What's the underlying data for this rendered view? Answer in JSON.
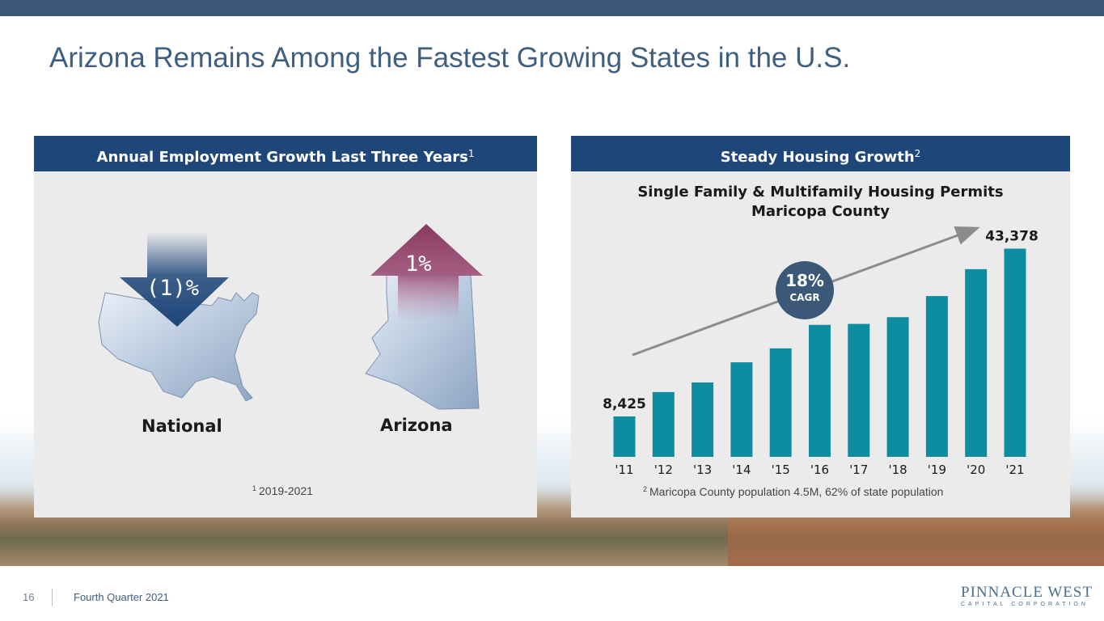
{
  "slide": {
    "title": "Arizona Remains Among the Fastest Growing States in the U.S.",
    "page_number": "16",
    "footer_text": "Fourth Quarter 2021",
    "logo_main": "PINNACLE WEST",
    "logo_sub": "CAPITAL CORPORATION",
    "colors": {
      "header_bar": "#1f4679",
      "top_bar": "#3b5878",
      "title": "#3f5f80",
      "bar": "#0f8da0",
      "down_arrow": "#1f4679",
      "up_arrow": "#8b3a62"
    }
  },
  "employment_panel": {
    "header": "Annual Employment Growth Last Three Years",
    "header_sup": "1",
    "national": {
      "label": "National",
      "value": "(1)%",
      "icon": "us-map-icon",
      "direction": "down"
    },
    "arizona": {
      "label": "Arizona",
      "value": "1%",
      "icon": "arizona-map-icon",
      "direction": "up"
    },
    "footnote_sup": "1",
    "footnote": "2019-2021"
  },
  "housing_panel": {
    "header": "Steady Housing Growth",
    "header_sup": "2",
    "chart_title_line1": "Single Family & Multifamily Housing Permits",
    "chart_title_line2": "Maricopa County",
    "cagr_value": "18%",
    "cagr_label": "CAGR",
    "footnote_sup": "2",
    "footnote": "Maricopa County population 4.5M, 62% of state population"
  },
  "chart_data": {
    "type": "bar",
    "title": "Single Family & Multifamily Housing Permits Maricopa County",
    "categories": [
      "'11",
      "'12",
      "'13",
      "'14",
      "'15",
      "'16",
      "'17",
      "'18",
      "'19",
      "'20",
      "'21"
    ],
    "values": [
      8425,
      13500,
      15500,
      19700,
      22600,
      27500,
      27700,
      29100,
      33500,
      39100,
      43378
    ],
    "data_labels": [
      {
        "index": 0,
        "text": "8,425"
      },
      {
        "index": 10,
        "text": "43,378"
      }
    ],
    "annotation": "18% CAGR",
    "ylim": [
      0,
      47000
    ],
    "grid": false,
    "legend": "none"
  }
}
